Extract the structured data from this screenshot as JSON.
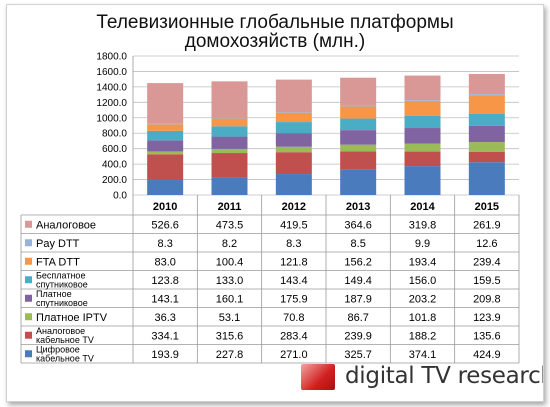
{
  "title_lines": [
    "Телевизионные глобальные платформы",
    "домохозяйств (млн.)"
  ],
  "logo_text": "digital TV research",
  "chart_data": {
    "type": "bar",
    "stacked": true,
    "categories": [
      "2010",
      "2011",
      "2012",
      "2013",
      "2014",
      "2015"
    ],
    "ylim": [
      0,
      1800
    ],
    "yticks": [
      "0.0",
      "200.0",
      "400.0",
      "600.0",
      "800.0",
      "1000.0",
      "1200.0",
      "1400.0",
      "1600.0",
      "1800.0"
    ],
    "grid": true,
    "series": [
      {
        "name": "Цифровое кабельное TV",
        "color": "#4a7bbd",
        "values": [
          193.9,
          227.8,
          271.0,
          325.7,
          374.1,
          424.9
        ],
        "labels": [
          "193.9",
          "227.8",
          "271.0",
          "325.7",
          "374.1",
          "424.9"
        ]
      },
      {
        "name": "Аналоговое кабельное TV",
        "color": "#c0504d",
        "values": [
          334.1,
          315.6,
          283.4,
          239.9,
          188.2,
          135.6
        ],
        "labels": [
          "334.1",
          "315.6",
          "283.4",
          "239.9",
          "188.2",
          "135.6"
        ]
      },
      {
        "name": "Платное IPTV",
        "color": "#9bbb59",
        "values": [
          36.3,
          53.1,
          70.8,
          86.7,
          101.8,
          123.9
        ],
        "labels": [
          "36.3",
          "53.1",
          "70.8",
          "86.7",
          "101.8",
          "123.9"
        ]
      },
      {
        "name": "Платное спутниковое",
        "color": "#8064a2",
        "values": [
          143.1,
          160.1,
          175.9,
          187.9,
          203.2,
          209.8
        ],
        "labels": [
          "143.1",
          "160.1",
          "175.9",
          "187.9",
          "203.2",
          "209.8"
        ]
      },
      {
        "name": "Бесплатное спутниковое",
        "color": "#4bacc6",
        "values": [
          123.8,
          133.0,
          143.4,
          149.4,
          156.0,
          159.5
        ],
        "labels": [
          "123.8",
          "133.0",
          "143.4",
          "149.4",
          "156.0",
          "159.5"
        ]
      },
      {
        "name": "FTA DTT",
        "color": "#f79646",
        "values": [
          83.0,
          100.4,
          121.8,
          156.2,
          193.4,
          239.4
        ],
        "labels": [
          "83.0",
          "100.4",
          "121.8",
          "156.2",
          "193.4",
          "239.4"
        ]
      },
      {
        "name": "Pay DTT",
        "color": "#95b3d7",
        "values": [
          8.3,
          8.2,
          8.3,
          8.5,
          9.9,
          12.6
        ],
        "labels": [
          "8.3",
          "8.2",
          "8.3",
          "8.5",
          "9.9",
          "12.6"
        ]
      },
      {
        "name": "Аналоговое",
        "color": "#d99795",
        "values": [
          526.6,
          473.5,
          419.5,
          364.6,
          319.8,
          261.9
        ],
        "labels": [
          "526.6",
          "473.5",
          "419.5",
          "364.6",
          "319.8",
          "261.9"
        ]
      }
    ]
  }
}
